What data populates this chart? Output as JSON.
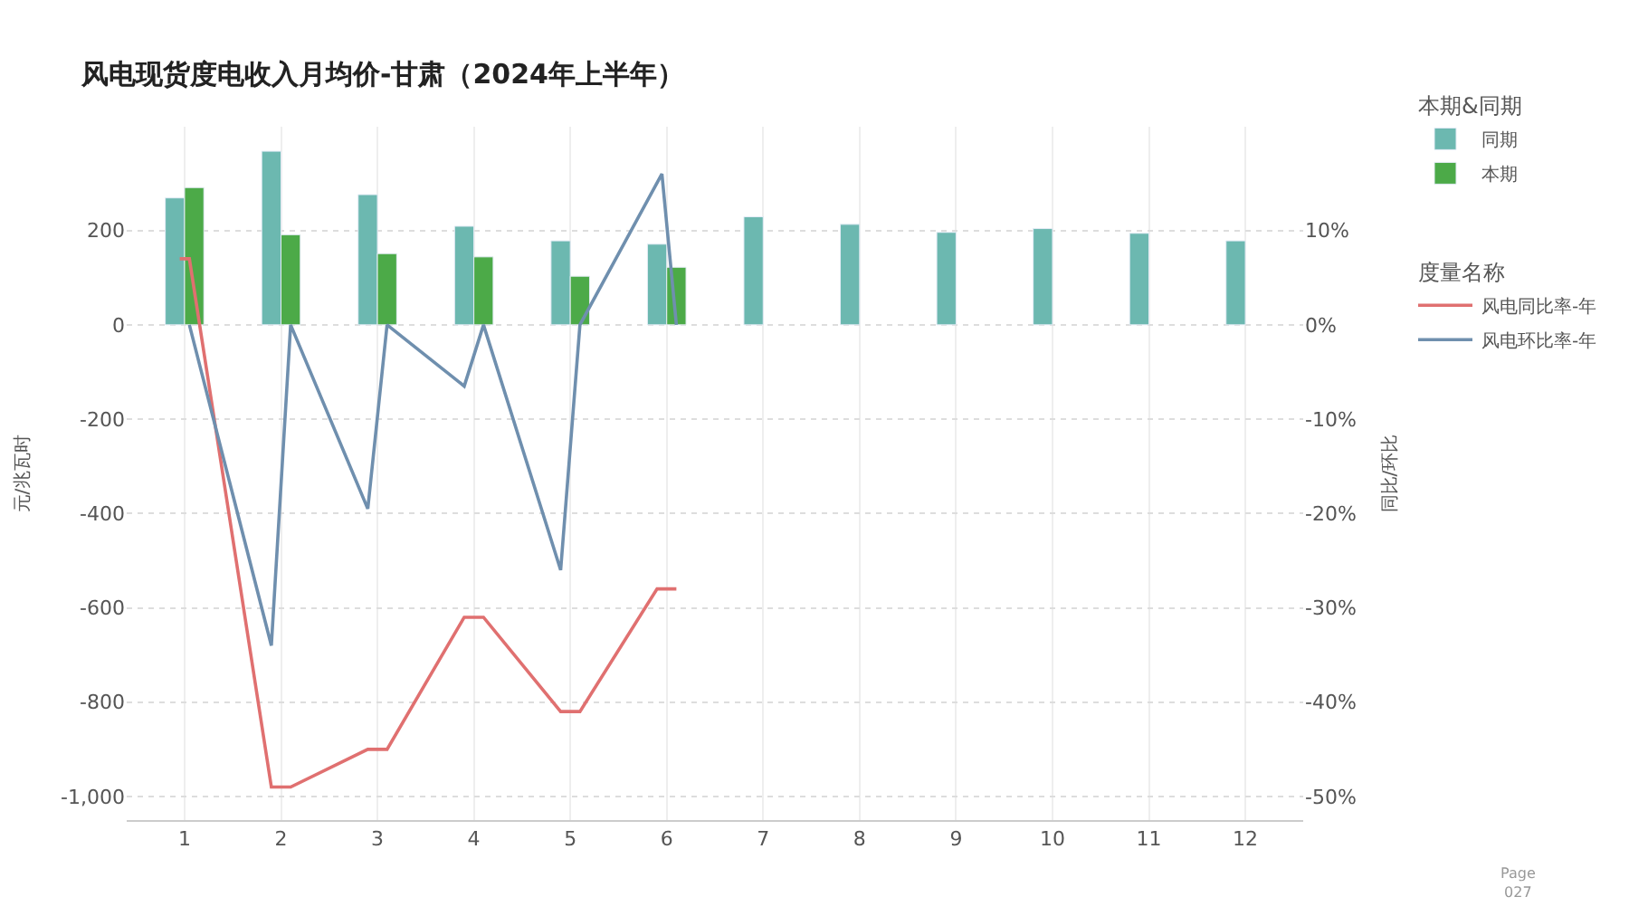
{
  "chart_data": {
    "type": "bar",
    "title": "风电现货度电收入月均价-甘肃（2024年上半年）",
    "xlabel": null,
    "ylabel": "元/兆瓦时",
    "y2label": "同比/环比",
    "x": [
      1,
      2,
      3,
      4,
      5,
      6,
      7,
      8,
      9,
      10,
      11,
      12
    ],
    "series": [
      {
        "name": "同期",
        "color": "#6cb8b0",
        "values": [
          269,
          368,
          276,
          209,
          178,
          171,
          229,
          213,
          196,
          204,
          194,
          178
        ]
      },
      {
        "name": "本期",
        "color": "#4caa48",
        "values": [
          291,
          191,
          151,
          144,
          103,
          122,
          null,
          null,
          null,
          null,
          null,
          null
        ]
      },
      {
        "name": "风电同比率-年",
        "type": "line",
        "axis": "y2",
        "color": "#e07070",
        "x": [
          0.95,
          1.05,
          1.9,
          2.1,
          2.9,
          3.1,
          3.9,
          4.1,
          4.9,
          5.1,
          5.9,
          6.1
        ],
        "values": [
          7,
          7,
          -49,
          -49,
          -45,
          -45,
          -31,
          -31,
          -41,
          -41,
          -28,
          -28
        ]
      },
      {
        "name": "风电环比率-年",
        "type": "line",
        "axis": "y2",
        "color": "#6f8fae",
        "x": [
          1.05,
          1.9,
          2.1,
          2.9,
          3.1,
          3.9,
          4.1,
          4.9,
          5.1,
          5.95,
          6.1
        ],
        "values": [
          0,
          -34,
          0,
          -19.5,
          0,
          -6.5,
          0,
          -26,
          0,
          16,
          0
        ]
      }
    ],
    "legend_title": [
      "本期&同期",
      "度量名称"
    ],
    "xlim": [
      0.4,
      12.6
    ],
    "xticks": [
      1,
      2,
      3,
      4,
      5,
      6,
      7,
      8,
      9,
      10,
      11,
      12
    ],
    "ylim": [
      -1050,
      420
    ],
    "yticks": [
      {
        "value": 200,
        "label": "200"
      },
      {
        "value": 0,
        "label": "0"
      },
      {
        "value": -200,
        "label": "-200"
      },
      {
        "value": -400,
        "label": "-400"
      },
      {
        "value": -600,
        "label": "-600"
      },
      {
        "value": -800,
        "label": "-800"
      },
      {
        "value": -1000,
        "label": "-1,000"
      }
    ],
    "y2lim": [
      -52.5,
      21
    ],
    "y2ticks": [
      {
        "value": 10,
        "label": "10%"
      },
      {
        "value": 0,
        "label": "0%"
      },
      {
        "value": -10,
        "label": "-10%"
      },
      {
        "value": -20,
        "label": "-20%"
      },
      {
        "value": -30,
        "label": "-30%"
      },
      {
        "value": -40,
        "label": "-40%"
      },
      {
        "value": -50,
        "label": "-50%"
      }
    ],
    "grid": true,
    "legend": "top right",
    "marker": "none",
    "line_style": "solid",
    "annotations": [
      "Page\n027"
    ]
  }
}
